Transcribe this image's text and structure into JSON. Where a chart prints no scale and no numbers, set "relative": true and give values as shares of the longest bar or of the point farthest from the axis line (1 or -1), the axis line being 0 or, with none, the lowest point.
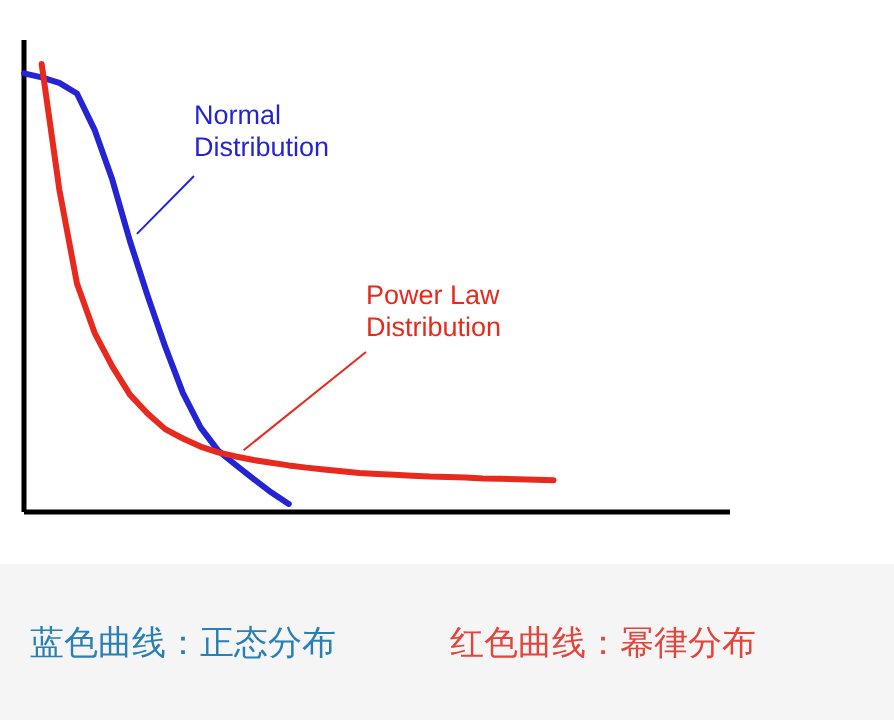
{
  "chart_data": {
    "type": "line",
    "relative": true,
    "categories": [
      null,
      null,
      null,
      null,
      null,
      null,
      null,
      null,
      null,
      null,
      null,
      null,
      null,
      null,
      null,
      null,
      null,
      null,
      null,
      null,
      null,
      null,
      null,
      null,
      null,
      null,
      null,
      null,
      null,
      null,
      null
    ],
    "series": [
      {
        "name": "Normal\nDistribution",
        "color": "#2424d4",
        "values": [
          0.979,
          0.97,
          0.958,
          0.934,
          0.853,
          0.742,
          0.605,
          0.483,
          0.369,
          0.266,
          0.189,
          0.137,
          0.105,
          0.074,
          0.044,
          0.018,
          null,
          null,
          null,
          null,
          null,
          null,
          null,
          null,
          null,
          null,
          null,
          null,
          null,
          null,
          null
        ]
      },
      {
        "name": "Power Law\nDistribution",
        "color": "#e82a1e",
        "values": [
          null,
          1,
          0.72,
          0.51,
          0.4,
          0.325,
          0.262,
          0.22,
          0.185,
          0.164,
          0.146,
          0.133,
          0.124,
          0.116,
          0.11,
          0.104,
          0.099,
          0.095,
          0.091,
          0.087,
          0.085,
          0.083,
          0.081,
          0.079,
          0.078,
          0.077,
          0.075,
          0.074,
          0.073,
          0.072,
          0.071
        ]
      }
    ],
    "annotations": [
      "蓝色曲线：正态分布",
      "红色曲线：幂律分布"
    ]
  }
}
